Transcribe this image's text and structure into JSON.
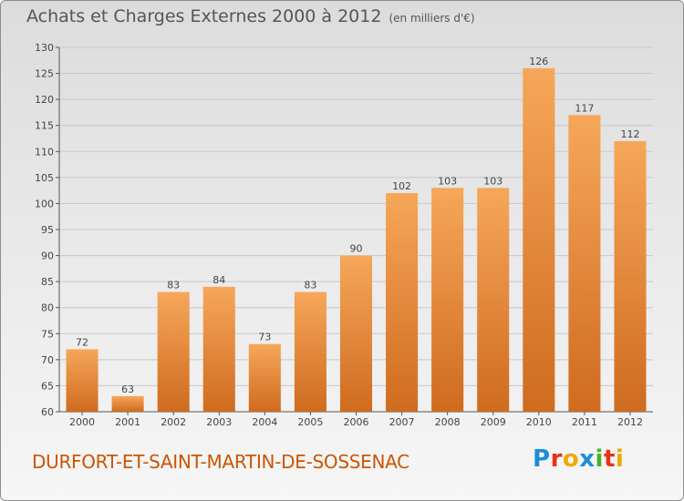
{
  "title": {
    "main": "Achats et Charges Externes 2000 à 2012",
    "unit": "(en milliers d'€)"
  },
  "city": "DURFORT-ET-SAINT-MARTIN-DE-SOSSENAC",
  "logo": {
    "text": "Proxiti",
    "letter_colors": [
      "#1a8fd8",
      "#e8321a",
      "#f0a800",
      "#1a8fd8",
      "#4caf2a",
      "#e8321a",
      "#f0a800"
    ]
  },
  "colors": {
    "bar_light": "#f6a75a",
    "bar_dark": "#cf6b1f",
    "axis": "#555555",
    "grid": "#c8c8c8"
  },
  "chart_data": {
    "type": "bar",
    "categories": [
      "2000",
      "2001",
      "2002",
      "2003",
      "2004",
      "2005",
      "2006",
      "2007",
      "2008",
      "2009",
      "2010",
      "2011",
      "2012"
    ],
    "values": [
      72,
      63,
      83,
      84,
      73,
      83,
      90,
      102,
      103,
      103,
      126,
      117,
      112
    ],
    "ylim": [
      60,
      130
    ],
    "yticks": [
      60,
      65,
      70,
      75,
      80,
      85,
      90,
      95,
      100,
      105,
      110,
      115,
      120,
      125,
      130
    ],
    "title": "Achats et Charges Externes 2000 à 2012",
    "xlabel": "",
    "ylabel": "",
    "grid": true,
    "data_labels": true
  }
}
